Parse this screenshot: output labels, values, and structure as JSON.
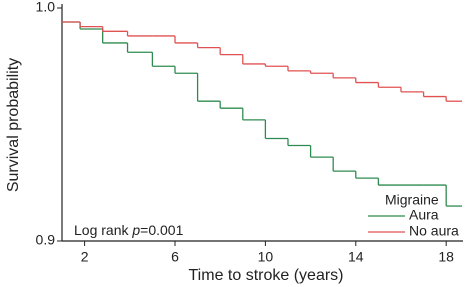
{
  "chart_data": {
    "type": "step",
    "x_label": "Time to stroke (years)",
    "y_label": "Survival probability",
    "x": [
      1,
      1.8,
      2.8,
      3.9,
      5,
      6,
      7,
      8,
      9,
      10,
      11,
      12,
      13,
      14,
      15,
      16,
      17,
      18
    ],
    "series": [
      {
        "name": "Aura",
        "color": "#2e8b4f",
        "values": [
          0.994,
          0.991,
          0.985,
          0.981,
          0.975,
          0.972,
          0.96,
          0.957,
          0.952,
          0.944,
          0.941,
          0.936,
          0.93,
          0.927,
          0.924,
          0.924,
          0.924,
          0.915
        ]
      },
      {
        "name": "No aura",
        "color": "#e05252",
        "values": [
          0.994,
          0.992,
          0.99,
          0.988,
          0.988,
          0.985,
          0.983,
          0.98,
          0.976,
          0.975,
          0.973,
          0.972,
          0.97,
          0.968,
          0.966,
          0.964,
          0.962,
          0.96
        ]
      }
    ],
    "legend_title": "Migraine",
    "legend_position": "lower right",
    "annotation": {
      "prefix": "Log rank ",
      "italic": "p",
      "suffix": "=0.001"
    },
    "xlim": [
      1,
      18.7
    ],
    "xticks": [
      2,
      6,
      10,
      14,
      18
    ],
    "ylim": [
      0.9,
      1.0
    ],
    "yticks": [
      0.9,
      {
        "value": 1.0,
        "label": "1.0"
      }
    ],
    "grid": false
  }
}
